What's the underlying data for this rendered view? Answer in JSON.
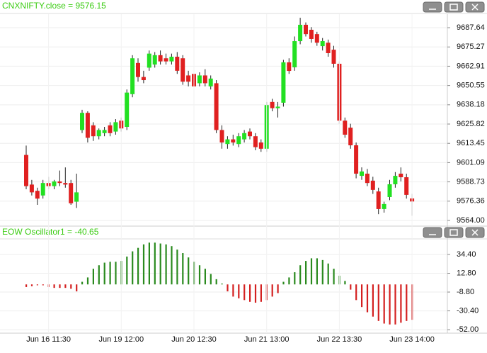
{
  "chart_data": [
    {
      "type": "candlestick",
      "title": "CNXNIFTY.close = 9576.15",
      "open": [
        9606,
        9587,
        9583,
        9580,
        9588,
        9586,
        9589,
        9588,
        9588,
        9576,
        9622,
        9633,
        9625,
        9618,
        9620,
        9625,
        9621,
        9628,
        9624,
        9645,
        9665,
        9656,
        9662,
        9664,
        9670,
        9668,
        9666,
        9669,
        9668,
        9657,
        9658,
        9652,
        9657,
        9650,
        9652,
        9622,
        9613,
        9616,
        9613,
        9616,
        9621,
        9618,
        9614,
        9610,
        9640,
        9636,
        9639.5,
        9665.4,
        9662.2,
        9679,
        9689.5,
        9686.3,
        9683.5,
        9675.8,
        9678,
        9673.5,
        9664.5,
        9628,
        9623.5,
        9612.2,
        9592.6,
        9594,
        9589.5,
        9582.6,
        9571.3,
        9579,
        9587.2,
        9594,
        9591.7,
        9578.1
      ],
      "high": [
        9612,
        9590,
        9585,
        9590,
        9592,
        9590,
        9596,
        9598,
        9590,
        9594,
        9635,
        9634,
        9627,
        9623,
        9624,
        9627,
        9629,
        9630,
        9648,
        9670,
        9668,
        9660,
        9673,
        9672,
        9673,
        9671,
        9671,
        9672,
        9670,
        9660,
        9660,
        9659,
        9661,
        9657,
        9654,
        9625,
        9618,
        9619,
        9620,
        9622,
        9623,
        9620,
        9616,
        9640,
        9642,
        9640,
        9667,
        9668,
        9682,
        9694,
        9691,
        9688,
        9685,
        9681,
        9680,
        9676,
        9666,
        9630,
        9626,
        9614,
        9598,
        9597,
        9592,
        9585,
        9576,
        9590,
        9595,
        9598,
        9594,
        9581
      ],
      "low": [
        9584,
        9580,
        9574,
        9578,
        9584,
        9584,
        9586,
        9585,
        9574,
        9572,
        9620,
        9614,
        9615,
        9616,
        9618,
        9618,
        9619,
        9621,
        9622,
        9643,
        9653,
        9652,
        9660,
        9662,
        9664,
        9664,
        9664,
        9658,
        9651,
        9650,
        9648,
        9650,
        9650,
        9648,
        9620,
        9610,
        9610,
        9612,
        9611,
        9614,
        9616,
        9609,
        9608,
        9608,
        9634,
        9630,
        9637,
        9658,
        9660,
        9677,
        9682,
        9678,
        9676,
        9673,
        9669,
        9662,
        9626,
        9617,
        9610,
        9591,
        9590,
        9586,
        9581,
        9568,
        9569,
        9577,
        9585,
        9589,
        9578,
        9567
      ],
      "close": [
        9586,
        9582,
        9578,
        9588,
        9586,
        9589,
        9588,
        9587,
        9575,
        9582,
        9633,
        9617,
        9618,
        9622,
        9622,
        9620,
        9627,
        9623,
        9646,
        9668,
        9656,
        9654,
        9671,
        9670,
        9666,
        9666,
        9669,
        9660,
        9653,
        9653,
        9650,
        9657,
        9652,
        9655,
        9622,
        9614,
        9616,
        9614,
        9618,
        9620,
        9618,
        9611,
        9610,
        9638,
        9636,
        9637,
        9665.4,
        9659.9,
        9679,
        9689.5,
        9683.5,
        9680.4,
        9678,
        9679,
        9671.3,
        9664.5,
        9628,
        9619,
        9612.2,
        9594,
        9595.4,
        9588,
        9583.6,
        9571.3,
        9574.5,
        9587.2,
        9592.6,
        9591.7,
        9580.4,
        9576.15
      ],
      "up_color": "#22e022",
      "down_color": "#e02020",
      "ylim": [
        9560.8,
        9696.3
      ],
      "yticks": [
        {
          "value": 9564,
          "label": "9564.00"
        },
        9576.36,
        9588.73,
        9601.09,
        9613.45,
        9625.82,
        9638.18,
        9650.55,
        9662.91,
        9675.27,
        9687.64
      ],
      "grid": true
    },
    {
      "type": "bar",
      "title": "EOW Oscillator1 = -40.65",
      "categories": [
        null,
        null,
        null,
        null,
        "Jun 16 11:30",
        null,
        null,
        null,
        null,
        null,
        null,
        null,
        null,
        null,
        null,
        null,
        null,
        "Jun 19 12:00",
        null,
        null,
        null,
        null,
        null,
        null,
        null,
        null,
        null,
        null,
        null,
        null,
        "Jun 20 12:30",
        null,
        null,
        null,
        null,
        null,
        null,
        null,
        null,
        null,
        null,
        null,
        null,
        "Jun 21 13:00",
        null,
        null,
        null,
        null,
        null,
        null,
        null,
        null,
        null,
        null,
        null,
        null,
        "Jun 22 13:30",
        null,
        null,
        null,
        null,
        null,
        null,
        null,
        null,
        null,
        null,
        null,
        null,
        "Jun 23 14:00"
      ],
      "values": [
        -3,
        -2,
        -1,
        -1,
        -3,
        -4,
        -4,
        -4,
        -5,
        -8,
        3,
        8,
        18,
        22,
        25,
        26,
        26,
        27,
        32,
        38,
        42,
        46,
        48,
        48,
        47,
        46,
        44,
        40,
        36,
        31,
        26,
        22,
        18,
        12,
        6,
        1,
        -8,
        -14,
        -16,
        -18,
        -20,
        -21,
        -20,
        -18,
        -14,
        -10,
        3,
        8,
        14,
        22,
        27,
        30,
        30,
        28,
        24,
        18,
        10,
        4,
        -6,
        -18,
        -26,
        -32,
        -37,
        -42,
        -45,
        -46,
        -46,
        -44,
        -42,
        -40.65
      ],
      "up_color": "#2a8a1e",
      "down_color": "#d42020",
      "ylim": [
        -56,
        51.5
      ],
      "yticks": [
        {
          "value": 34.4,
          "label": "34.40"
        },
        {
          "value": 12.8,
          "label": "12.80"
        },
        {
          "value": -8.8,
          "label": "-8.80"
        },
        {
          "value": -30.4,
          "label": "-30.40"
        },
        {
          "value": -52,
          "label": "-52.00"
        }
      ],
      "grid": true
    }
  ]
}
